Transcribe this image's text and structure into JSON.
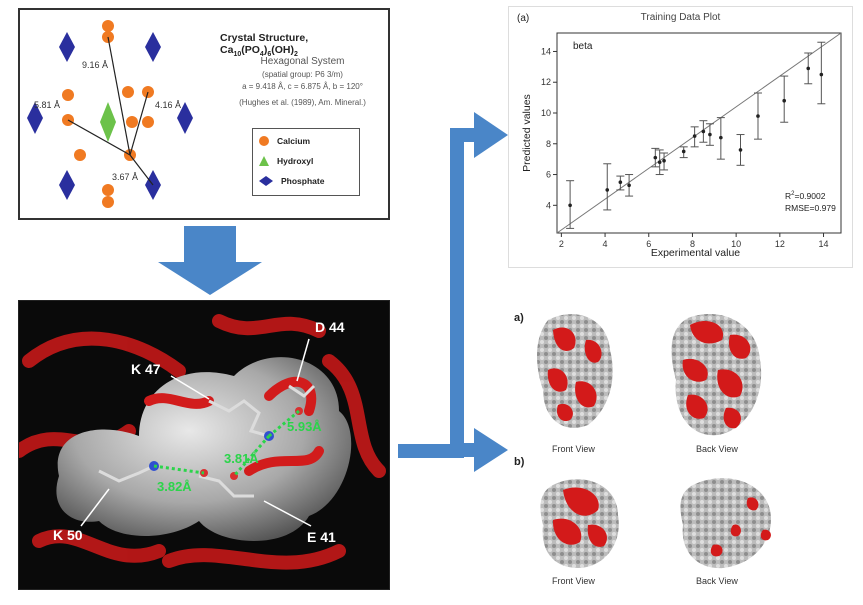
{
  "crystal": {
    "title_prefix": "Crystal Structure, Ca",
    "title_sub1": "10",
    "title_mid": "(PO",
    "title_sub2": "4",
    "title_mid2": ")",
    "title_sub3": "6",
    "title_suffix": "(OH)",
    "title_sub4": "2",
    "system": "Hexagonal System",
    "space_group": "(spatial group: P6 3/m)",
    "params": "a = 9.418 Å, c = 6.875 Å, b = 120°",
    "reference": "(Hughes et al. (1989), Am. Mineral.)",
    "distances": [
      "9.16 Å",
      "5.81 Å",
      "4.16 Å",
      "3.67 Å"
    ],
    "legend": [
      {
        "label": "Calcium",
        "color": "#f07a22"
      },
      {
        "label": "Hydroxyl",
        "color": "#6cc24a"
      },
      {
        "label": "Phosphate",
        "color": "#2a2f9e"
      }
    ]
  },
  "protein": {
    "residues": [
      "D 44",
      "K 47",
      "K 50",
      "E 41"
    ],
    "bonds": [
      "5.93Å",
      "3.81Å",
      "3.82Å"
    ]
  },
  "training": {
    "panel_label": "(a)",
    "title": "Training Data Plot",
    "annotation": "beta",
    "r2_label": "R",
    "r2_sup": "2",
    "r2_value": "=0.9002",
    "rmse": "RMSE=0.979",
    "xlabel": "Experimental value",
    "ylabel": "Predicted values",
    "xticks": [
      "2",
      "4",
      "6",
      "8",
      "10",
      "12",
      "14"
    ],
    "yticks": [
      "4",
      "6",
      "8",
      "10",
      "12",
      "14"
    ]
  },
  "chart_data": {
    "type": "scatter",
    "title": "Training Data Plot",
    "xlabel": "Experimental value",
    "ylabel": "Predicted values",
    "xlim": [
      1.8,
      14.8
    ],
    "ylim": [
      2.2,
      15.2
    ],
    "grid": false,
    "points": [
      {
        "x": 2.4,
        "y": 4.0,
        "lo": 2.5,
        "hi": 5.6
      },
      {
        "x": 4.1,
        "y": 5.0,
        "lo": 3.7,
        "hi": 6.7
      },
      {
        "x": 4.7,
        "y": 5.5,
        "lo": 5.0,
        "hi": 5.9
      },
      {
        "x": 5.1,
        "y": 5.3,
        "lo": 4.6,
        "hi": 6.0
      },
      {
        "x": 6.3,
        "y": 7.1,
        "lo": 6.5,
        "hi": 7.7
      },
      {
        "x": 6.5,
        "y": 6.8,
        "lo": 6.0,
        "hi": 7.6
      },
      {
        "x": 6.7,
        "y": 6.9,
        "lo": 6.3,
        "hi": 7.4
      },
      {
        "x": 7.6,
        "y": 7.5,
        "lo": 7.1,
        "hi": 7.8
      },
      {
        "x": 8.1,
        "y": 8.5,
        "lo": 7.8,
        "hi": 9.1
      },
      {
        "x": 8.5,
        "y": 8.8,
        "lo": 8.1,
        "hi": 9.5
      },
      {
        "x": 8.8,
        "y": 8.6,
        "lo": 7.9,
        "hi": 9.3
      },
      {
        "x": 9.3,
        "y": 8.4,
        "lo": 7.0,
        "hi": 9.7
      },
      {
        "x": 10.2,
        "y": 7.6,
        "lo": 6.6,
        "hi": 8.6
      },
      {
        "x": 11.0,
        "y": 9.8,
        "lo": 8.3,
        "hi": 11.3
      },
      {
        "x": 12.2,
        "y": 10.8,
        "lo": 9.4,
        "hi": 12.4
      },
      {
        "x": 13.3,
        "y": 12.9,
        "lo": 11.9,
        "hi": 13.9
      },
      {
        "x": 13.9,
        "y": 12.5,
        "lo": 10.6,
        "hi": 14.6
      }
    ],
    "reference_line": [
      [
        1.8,
        2.2
      ],
      [
        14.8,
        15.2
      ]
    ]
  },
  "surface": {
    "label_a": "a)",
    "label_b": "b)",
    "views": [
      "Front View",
      "Back View",
      "Front View",
      "Back View"
    ]
  },
  "colors": {
    "arrow": "#4a86c8",
    "calcium": "#f07a22",
    "hydroxyl": "#6cc24a",
    "phosphate": "#2a2f9e",
    "ribbon": "#c41818",
    "hbond": "#2bd44a"
  }
}
